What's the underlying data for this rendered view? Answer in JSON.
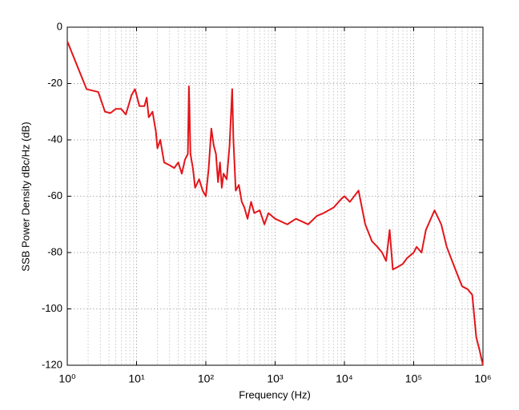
{
  "chart_data": {
    "type": "line",
    "xlabel": "Frequency (Hz)",
    "ylabel": "SSB Power Density dBc/Hz (dB)",
    "xscale": "log",
    "grid": true,
    "minor_grid": true,
    "xlim": [
      1,
      1000000
    ],
    "ylim": [
      -120,
      0
    ],
    "xticks": [
      {
        "value": 1,
        "label": "10⁰"
      },
      {
        "value": 10,
        "label": "10¹"
      },
      {
        "value": 100,
        "label": "10²"
      },
      {
        "value": 1000,
        "label": "10³"
      },
      {
        "value": 10000,
        "label": "10⁴"
      },
      {
        "value": 100000,
        "label": "10⁵"
      },
      {
        "value": 1000000,
        "label": "10⁶"
      }
    ],
    "yticks": [
      -120,
      -100,
      -80,
      -60,
      -40,
      -20,
      0
    ],
    "x": [
      1,
      1.9,
      2.8,
      3.5,
      4.2,
      5,
      6,
      7,
      8.5,
      9.5,
      11,
      13,
      14,
      15,
      17,
      19,
      20,
      22,
      25,
      30,
      35,
      40,
      45,
      50,
      55,
      57,
      60,
      65,
      70,
      80,
      90,
      100,
      110,
      120,
      130,
      140,
      150,
      160,
      170,
      180,
      200,
      220,
      240,
      250,
      270,
      300,
      330,
      360,
      400,
      450,
      500,
      600,
      700,
      800,
      1000,
      1500,
      2000,
      3000,
      4000,
      5000,
      7000,
      9000,
      10000,
      12000,
      16000,
      20000,
      25000,
      30000,
      35000,
      40000,
      45000,
      50000,
      60000,
      70000,
      80000,
      100000,
      110000,
      130000,
      150000,
      200000,
      250000,
      300000,
      400000,
      500000,
      600000,
      700000,
      800000,
      900000,
      1000000
    ],
    "series": [
      {
        "color": "#e3151a",
        "values": [
          -5,
          -22,
          -23,
          -30,
          -30.5,
          -29,
          -29,
          -31,
          -24,
          -22,
          -28,
          -28,
          -25,
          -32,
          -30,
          -37,
          -43,
          -40,
          -48,
          -49,
          -50,
          -48,
          -52,
          -47,
          -45,
          -21,
          -45,
          -50,
          -57,
          -54,
          -58,
          -60,
          -50,
          -36,
          -42,
          -45,
          -55,
          -48,
          -57,
          -52,
          -54,
          -42,
          -22,
          -40,
          -58,
          -56,
          -62,
          -64,
          -68,
          -62,
          -66,
          -65,
          -70,
          -66,
          -68,
          -70,
          -68,
          -70,
          -67,
          -66,
          -64,
          -61,
          -60,
          -62,
          -58,
          -70,
          -76,
          -78,
          -80,
          -83,
          -72,
          -86,
          -85,
          -84,
          -82,
          -80,
          -78,
          -80,
          -72,
          -65,
          -70,
          -78,
          -86,
          -92,
          -93,
          -95,
          -110,
          -115,
          -120
        ]
      }
    ]
  }
}
